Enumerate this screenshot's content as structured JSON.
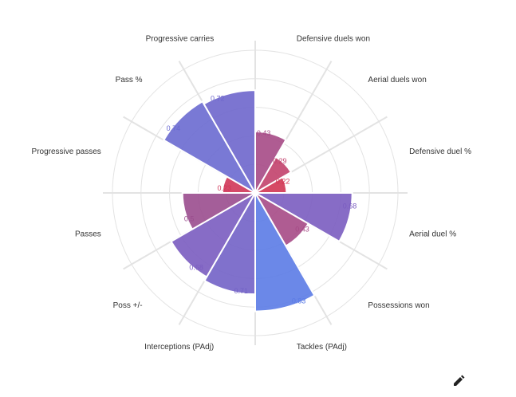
{
  "chart_data": {
    "type": "polar-bar",
    "categories": [
      "Defensive duels won",
      "Aerial duels won",
      "Defensive duel %",
      "Aerial duel %",
      "Possessions won",
      "Tackles (PAdj)",
      "Interceptions (PAdj)",
      "Poss +/-",
      "Passes",
      "Progressive passes",
      "Pass %",
      "Progressive carries"
    ],
    "values": [
      0.43,
      0.29,
      0.22,
      0.68,
      0.43,
      0.83,
      0.71,
      0.68,
      0.51,
      0.23,
      0.74,
      0.72
    ],
    "value_labels": [
      "0.43",
      "0.29",
      "0.22",
      "0.68",
      "0.43",
      "0.83",
      "0.71",
      "0.68",
      "0.5",
      "0.23",
      "0.74",
      "0.72"
    ],
    "colors": [
      "#a64a86",
      "#c2416c",
      "#d23553",
      "#7a5cc0",
      "#a64a86",
      "#5b7be6",
      "#7262c6",
      "#7a5cc0",
      "#9a4d8e",
      "#d03558",
      "#6a6ad0",
      "#6e66cc"
    ],
    "rlim": [
      0,
      1
    ],
    "rticks": [
      0.2,
      0.4,
      0.6,
      0.8,
      1
    ]
  }
}
